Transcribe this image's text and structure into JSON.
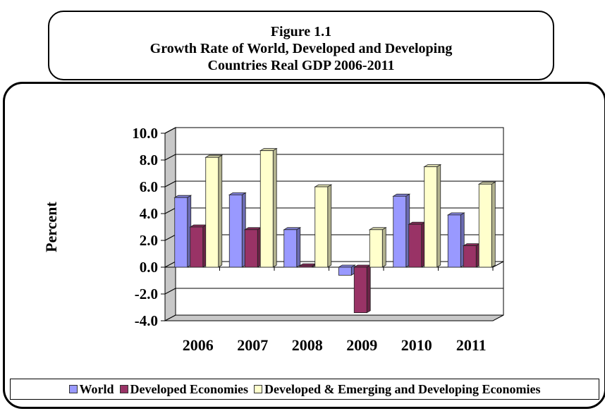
{
  "figure": {
    "number": "Figure 1.1",
    "title_line1": "Growth Rate of World,  Developed and Developing",
    "title_line2": "Countries Real GDP 2006-2011"
  },
  "chart_data": {
    "type": "bar",
    "ylabel": "Percent",
    "xlabel": "",
    "ylim": [
      -4.0,
      10.0
    ],
    "y_ticks": [
      "10.0",
      "8.0",
      "6.0",
      "4.0",
      "2.0",
      "0.0",
      "-2.0",
      "-4.0"
    ],
    "grid": true,
    "legend_position": "bottom",
    "categories": [
      "2006",
      "2007",
      "2008",
      "2009",
      "2010",
      "2011"
    ],
    "series": [
      {
        "name": "World",
        "values": [
          5.2,
          5.4,
          2.8,
          -0.6,
          5.3,
          3.9
        ],
        "color": "#9999ff"
      },
      {
        "name": "Developed Economies",
        "values": [
          3.0,
          2.8,
          0.1,
          -3.4,
          3.2,
          1.6
        ],
        "color": "#993366"
      },
      {
        "name": "Developed & Emerging and Developing Economies",
        "values": [
          8.2,
          8.7,
          6.0,
          2.8,
          7.5,
          6.2
        ],
        "color": "#ffffcc"
      }
    ]
  }
}
